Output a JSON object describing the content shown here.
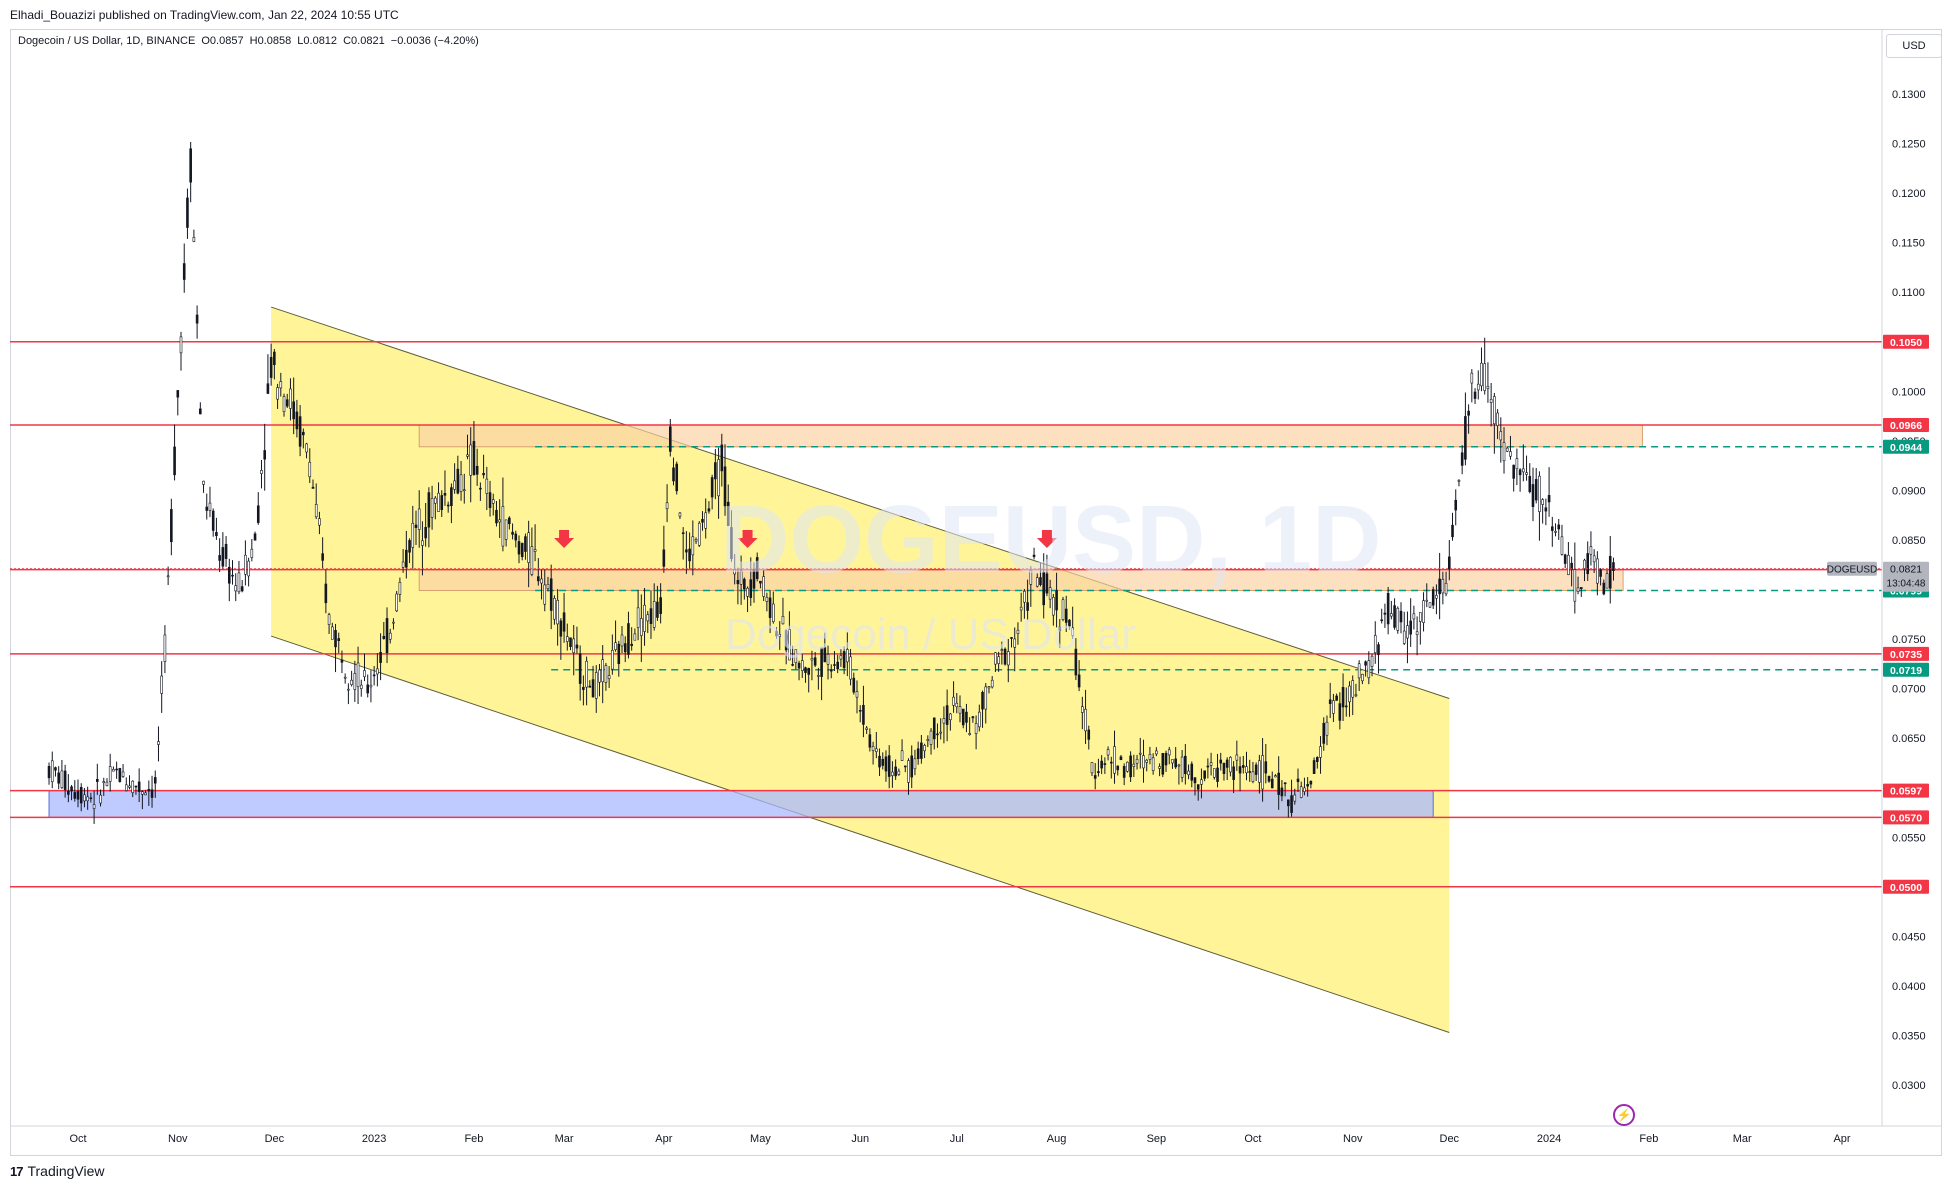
{
  "header": {
    "published_line": "Elhadi_Bouazizi published on TradingView.com, Jan 22, 2024 10:55 UTC"
  },
  "symbol_info": {
    "name": "Dogecoin / US Dollar, 1D, BINANCE",
    "open": "O0.0857",
    "high": "H0.0858",
    "low": "L0.0812",
    "close": "C0.0821",
    "change": "−0.0036 (−4.20%)"
  },
  "watermark": {
    "symbol": "DOGEUSD, 1D",
    "description": "Dogecoin / US Dollar"
  },
  "currency": "USD",
  "footer": {
    "brand": "TradingView"
  },
  "colors": {
    "up": "#131722",
    "resistance_line": "#f23645",
    "channel_fill": "#fff176",
    "dashed_level": "#089981",
    "orange_zone": "#fbd3a5",
    "blue_zone": "#aab8ff",
    "arrow": "#f23645"
  },
  "chart_data": {
    "type": "candlestick",
    "title": "Dogecoin / US Dollar, 1D, BINANCE",
    "ylim": [
      0.0265,
      0.1395
    ],
    "y_ticks": [
      "0.1300",
      "0.1250",
      "0.1200",
      "0.1150",
      "0.1100",
      "0.1050",
      "0.1000",
      "0.0950",
      "0.0900",
      "0.0850",
      "0.0800",
      "0.0750",
      "0.0700",
      "0.0650",
      "0.0600",
      "0.0550",
      "0.0500",
      "0.0450",
      "0.0400",
      "0.0350",
      "0.0300"
    ],
    "x_ticks": [
      "Oct",
      "Nov",
      "Dec",
      "2023",
      "Feb",
      "Mar",
      "Apr",
      "May",
      "Jun",
      "Jul",
      "Aug",
      "Sep",
      "Oct",
      "Nov",
      "Dec",
      "2024",
      "Feb",
      "Mar",
      "Apr"
    ],
    "series": [
      {
        "dates": [
          "2022-09-22",
          "2022-09-29",
          "2022-10-06",
          "2022-10-13",
          "2022-10-20",
          "2022-10-25",
          "2022-10-28",
          "2022-11-01",
          "2022-11-05",
          "2022-11-09",
          "2022-11-14",
          "2022-11-20",
          "2022-11-25",
          "2022-11-30",
          "2022-12-06",
          "2022-12-12",
          "2022-12-18",
          "2022-12-24",
          "2022-12-30",
          "2023-01-06",
          "2023-01-12",
          "2023-01-18",
          "2023-01-25",
          "2023-02-01",
          "2023-02-07",
          "2023-02-14",
          "2023-02-20",
          "2023-02-27",
          "2023-03-06",
          "2023-03-11",
          "2023-03-17",
          "2023-03-24",
          "2023-03-31",
          "2023-04-03",
          "2023-04-08",
          "2023-04-14",
          "2023-04-19",
          "2023-04-24",
          "2023-04-30",
          "2023-05-07",
          "2023-05-14",
          "2023-05-21",
          "2023-05-28",
          "2023-06-05",
          "2023-06-10",
          "2023-06-17",
          "2023-06-24",
          "2023-06-30",
          "2023-07-07",
          "2023-07-13",
          "2023-07-20",
          "2023-07-25",
          "2023-07-30",
          "2023-08-05",
          "2023-08-12",
          "2023-08-17",
          "2023-08-24",
          "2023-08-31",
          "2023-09-07",
          "2023-09-14",
          "2023-09-21",
          "2023-09-28",
          "2023-10-05",
          "2023-10-12",
          "2023-10-19",
          "2023-10-25",
          "2023-10-31",
          "2023-11-06",
          "2023-11-12",
          "2023-11-17",
          "2023-11-24",
          "2023-11-30",
          "2023-12-04",
          "2023-12-08",
          "2023-12-12",
          "2023-12-17",
          "2023-12-22",
          "2023-12-28",
          "2024-01-03",
          "2024-01-09",
          "2024-01-14",
          "2024-01-19",
          "2024-01-22"
        ],
        "close": [
          0.062,
          0.06,
          0.059,
          0.0615,
          0.06,
          0.06,
          0.074,
          0.1,
          0.124,
          0.09,
          0.084,
          0.08,
          0.085,
          0.103,
          0.099,
          0.093,
          0.077,
          0.072,
          0.07,
          0.076,
          0.085,
          0.088,
          0.09,
          0.093,
          0.088,
          0.085,
          0.083,
          0.078,
          0.072,
          0.07,
          0.073,
          0.077,
          0.078,
          0.096,
          0.083,
          0.087,
          0.093,
          0.08,
          0.082,
          0.076,
          0.072,
          0.073,
          0.073,
          0.064,
          0.062,
          0.062,
          0.066,
          0.068,
          0.066,
          0.072,
          0.076,
          0.082,
          0.079,
          0.077,
          0.062,
          0.063,
          0.062,
          0.063,
          0.063,
          0.061,
          0.062,
          0.062,
          0.0615,
          0.059,
          0.06,
          0.068,
          0.069,
          0.072,
          0.078,
          0.076,
          0.078,
          0.081,
          0.09,
          0.1,
          0.102,
          0.095,
          0.092,
          0.09,
          0.087,
          0.08,
          0.083,
          0.081,
          0.0821
        ]
      }
    ],
    "horizontal_levels": [
      "0.1050",
      "0.0966",
      "0.0820",
      "0.0735",
      "0.0597",
      "0.0570",
      "0.0500"
    ],
    "dashed_levels": [
      "0.0944",
      "0.0799",
      "0.0719"
    ],
    "last_price": {
      "label": "DOGEUSD",
      "value": "0.0821",
      "countdown": "13:04:48"
    },
    "zones": [
      {
        "name": "resistance-zone",
        "from": "2023-01-15",
        "to": "2024-01-30",
        "low": 0.0944,
        "high": 0.0966
      },
      {
        "name": "pivot-zone",
        "from": "2023-01-15",
        "to": "2024-01-24",
        "low": 0.0799,
        "high": 0.082
      },
      {
        "name": "support-zone",
        "from": "2022-09-22",
        "to": "2023-11-26",
        "low": 0.057,
        "high": 0.0597
      }
    ],
    "channel": {
      "upper": [
        [
          "2022-11-30",
          0.1085
        ],
        [
          "2023-12-01",
          0.069
        ]
      ],
      "lower": [
        [
          "2022-11-30",
          0.0753
        ],
        [
          "2023-12-01",
          0.0353
        ]
      ]
    },
    "arrows": [
      "2023-03-01",
      "2023-04-27",
      "2023-07-29"
    ]
  }
}
